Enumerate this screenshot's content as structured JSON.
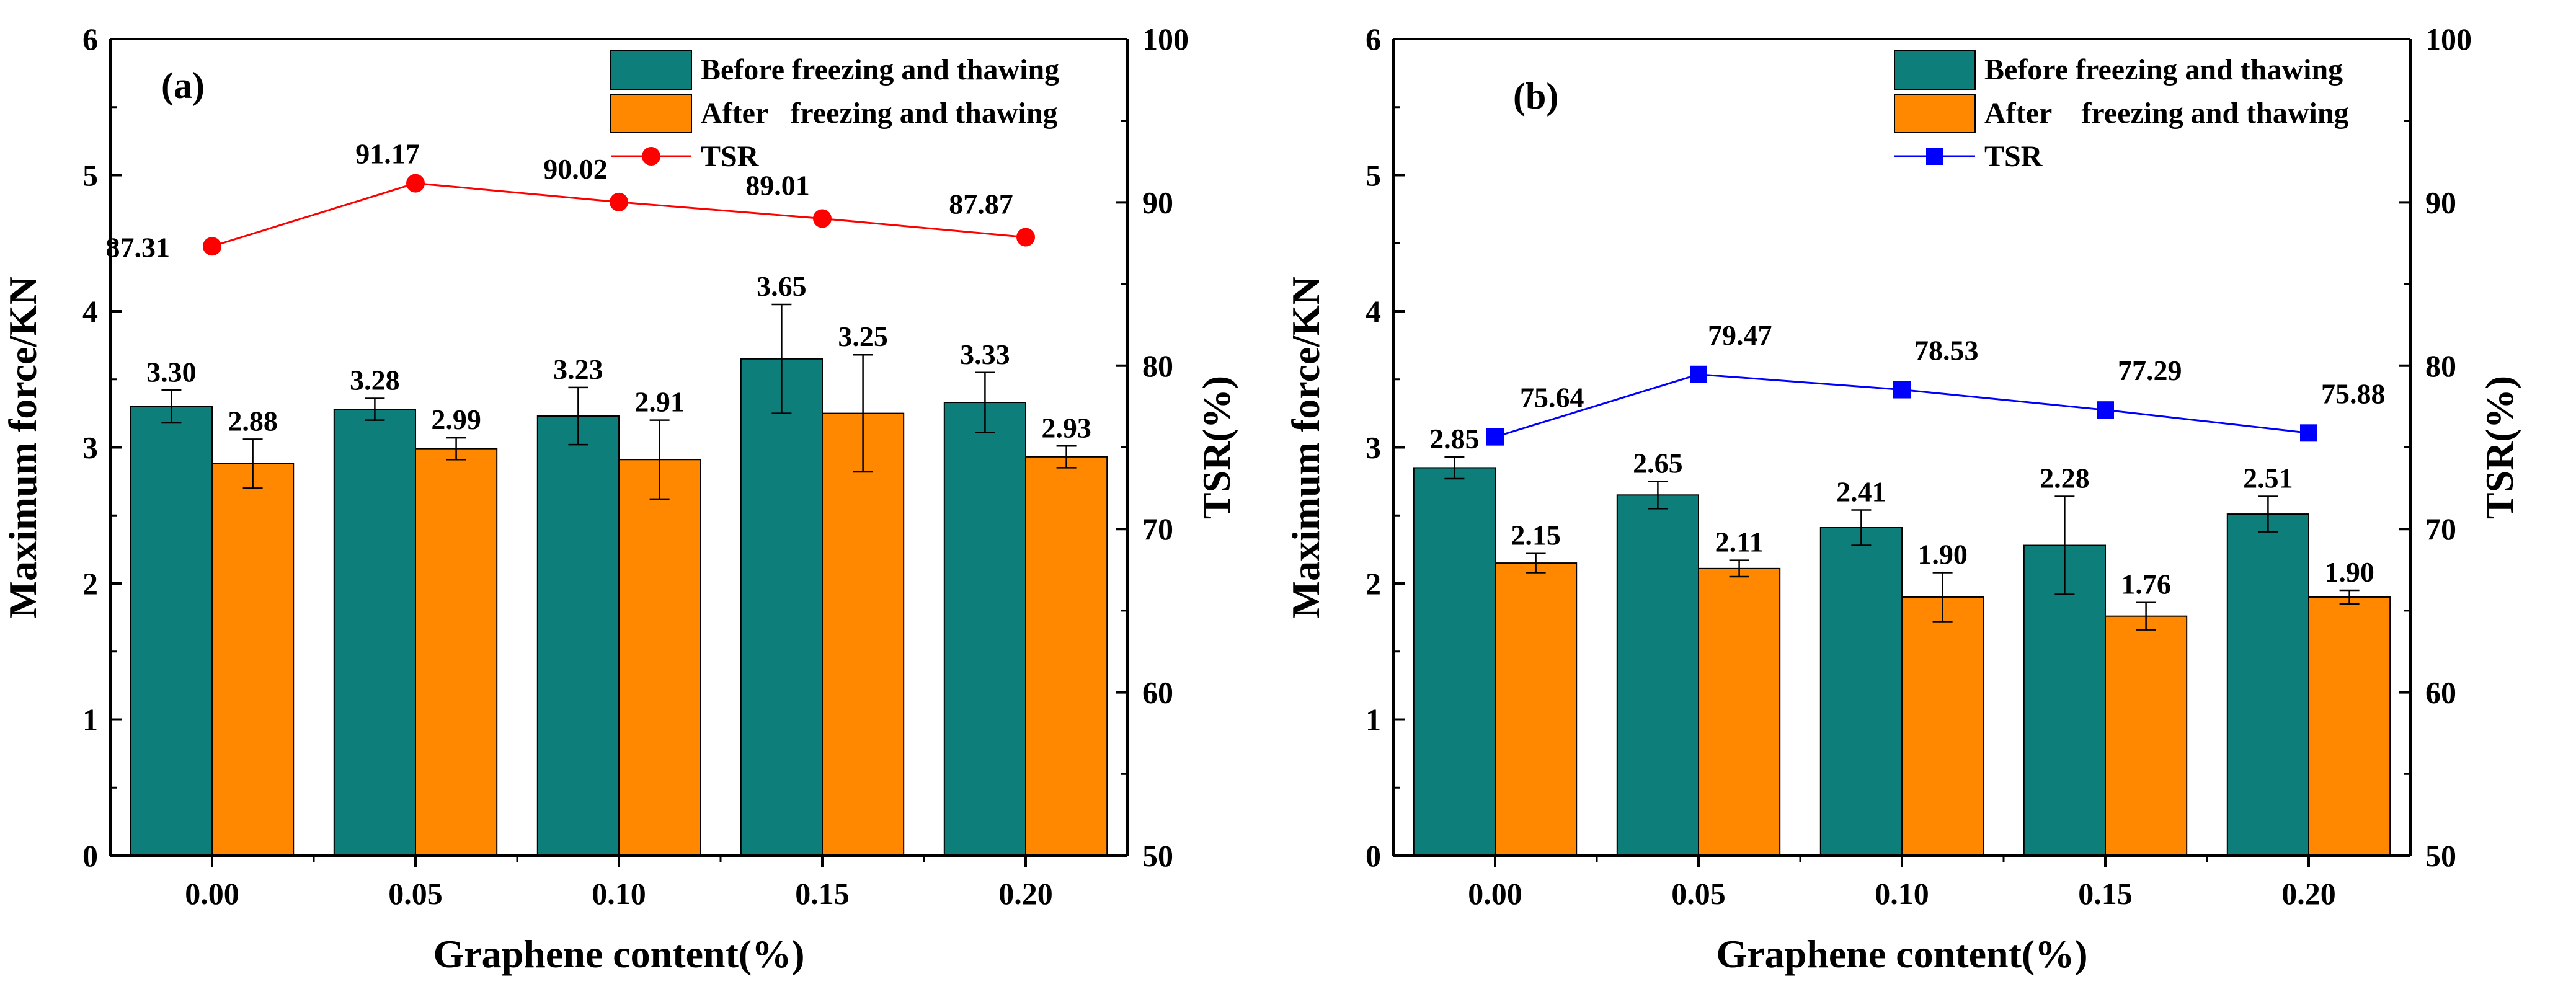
{
  "colors": {
    "before": "#0e7e7a",
    "after": "#ff8800",
    "tsr_a": "#ff0000",
    "tsr_b": "#0000ff",
    "axis": "#000000"
  },
  "chart_data": [
    {
      "type": "bar",
      "panel_label": "(a)",
      "xlabel": "Graphene content(%)",
      "ylabel": "Maximum force/KN",
      "y2label": "TSR(%)",
      "ylim": [
        0,
        6
      ],
      "y2lim": [
        50,
        100
      ],
      "yticks": [
        "0",
        "1",
        "2",
        "3",
        "4",
        "5",
        "6"
      ],
      "y2ticks": [
        "50",
        "60",
        "70",
        "80",
        "90",
        "100"
      ],
      "categories": [
        "0.00",
        "0.05",
        "0.10",
        "0.15",
        "0.20"
      ],
      "series": [
        {
          "name": "Before freezing and thawing",
          "kind": "bar",
          "values": [
            3.3,
            3.28,
            3.23,
            3.65,
            3.33
          ],
          "labels": [
            "3.30",
            "3.28",
            "3.23",
            "3.65",
            "3.33"
          ],
          "errors": [
            0.12,
            0.08,
            0.21,
            0.4,
            0.22
          ]
        },
        {
          "name": "After   freezing and thawing",
          "kind": "bar",
          "values": [
            2.88,
            2.99,
            2.91,
            3.25,
            2.93
          ],
          "labels": [
            "2.88",
            "2.99",
            "2.91",
            "3.25",
            "2.93"
          ],
          "errors": [
            0.18,
            0.08,
            0.29,
            0.43,
            0.08
          ]
        },
        {
          "name": "TSR",
          "kind": "line",
          "marker": "circle",
          "axis": "right",
          "values": [
            87.31,
            91.17,
            90.02,
            89.01,
            87.87
          ],
          "labels": [
            "87.31",
            "91.17",
            "90.02",
            "89.01",
            "87.87"
          ]
        }
      ]
    },
    {
      "type": "bar",
      "panel_label": "(b)",
      "xlabel": "Graphene content(%)",
      "ylabel": "Maximum force/KN",
      "y2label": "TSR(%)",
      "ylim": [
        0,
        6
      ],
      "y2lim": [
        50,
        100
      ],
      "yticks": [
        "0",
        "1",
        "2",
        "3",
        "4",
        "5",
        "6"
      ],
      "y2ticks": [
        "50",
        "60",
        "70",
        "80",
        "90",
        "100"
      ],
      "categories": [
        "0.00",
        "0.05",
        "0.10",
        "0.15",
        "0.20"
      ],
      "series": [
        {
          "name": "Before freezing and thawing",
          "kind": "bar",
          "values": [
            2.85,
            2.65,
            2.41,
            2.28,
            2.51
          ],
          "labels": [
            "2.85",
            "2.65",
            "2.41",
            "2.28",
            "2.51"
          ],
          "errors": [
            0.08,
            0.1,
            0.13,
            0.36,
            0.13
          ]
        },
        {
          "name": "After    freezing and thawing",
          "kind": "bar",
          "values": [
            2.15,
            2.11,
            1.9,
            1.76,
            1.9
          ],
          "labels": [
            "2.15",
            "2.11",
            "1.90",
            "1.76",
            "1.90"
          ],
          "errors": [
            0.07,
            0.06,
            0.18,
            0.1,
            0.05
          ]
        },
        {
          "name": "TSR",
          "kind": "line",
          "marker": "square",
          "axis": "right",
          "values": [
            75.64,
            79.47,
            78.53,
            77.29,
            75.88
          ],
          "labels": [
            "75.64",
            "79.47",
            "78.53",
            "77.29",
            "75.88"
          ]
        }
      ]
    }
  ]
}
